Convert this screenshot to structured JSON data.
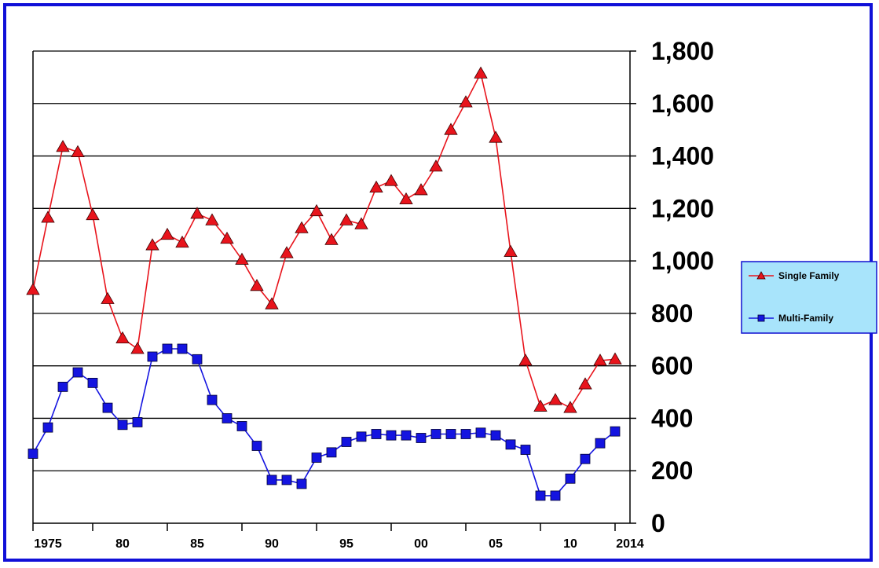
{
  "chart_data": {
    "type": "line",
    "title": "",
    "xlabel": "",
    "ylabel": "",
    "x": [
      1974,
      1975,
      1976,
      1977,
      1978,
      1979,
      1980,
      1981,
      1982,
      1983,
      1984,
      1985,
      1986,
      1987,
      1988,
      1989,
      1990,
      1991,
      1992,
      1993,
      1994,
      1995,
      1996,
      1997,
      1998,
      1999,
      2000,
      2001,
      2002,
      2003,
      2004,
      2005,
      2006,
      2007,
      2008,
      2009,
      2010,
      2011,
      2012,
      2013,
      2014
    ],
    "xlim": [
      1974,
      2014
    ],
    "ylim": [
      0,
      1800
    ],
    "y_axis_side": "right",
    "y_ticks": [
      {
        "value": 0,
        "label": "0"
      },
      {
        "value": 200,
        "label": "200"
      },
      {
        "value": 400,
        "label": "400"
      },
      {
        "value": 600,
        "label": "600"
      },
      {
        "value": 800,
        "label": "800"
      },
      {
        "value": 1000,
        "label": "1,000"
      },
      {
        "value": 1200,
        "label": "1,200"
      },
      {
        "value": 1400,
        "label": "1,400"
      },
      {
        "value": 1600,
        "label": "1,600"
      },
      {
        "value": 1800,
        "label": "1,800"
      }
    ],
    "x_ticks": [
      {
        "value": 1975,
        "label": "1975"
      },
      {
        "value": 1980,
        "label": "80"
      },
      {
        "value": 1985,
        "label": "85"
      },
      {
        "value": 1990,
        "label": "90"
      },
      {
        "value": 1995,
        "label": "95"
      },
      {
        "value": 2000,
        "label": "00"
      },
      {
        "value": 2005,
        "label": "05"
      },
      {
        "value": 2010,
        "label": "10"
      },
      {
        "value": 2014,
        "label": "2014"
      }
    ],
    "x_minor_ticks": [
      1974,
      1978,
      1983,
      1988,
      1993,
      1998,
      2003,
      2008,
      2013
    ],
    "grid": "horizontal",
    "legend_position": "right",
    "series": [
      {
        "name": "Single Family",
        "color": "#e8141c",
        "marker": "triangle",
        "values": [
          890,
          1165,
          1435,
          1415,
          1175,
          855,
          705,
          665,
          1060,
          1100,
          1070,
          1180,
          1155,
          1085,
          1005,
          905,
          835,
          1030,
          1125,
          1190,
          1080,
          1155,
          1140,
          1280,
          1305,
          1235,
          1270,
          1360,
          1500,
          1605,
          1715,
          1470,
          1035,
          620,
          445,
          470,
          440,
          530,
          620,
          625,
          null
        ]
      },
      {
        "name": "Multi-Family",
        "color": "#1414e0",
        "marker": "square",
        "values": [
          265,
          365,
          520,
          575,
          535,
          440,
          375,
          385,
          635,
          665,
          665,
          625,
          470,
          400,
          370,
          295,
          165,
          165,
          150,
          250,
          270,
          310,
          330,
          340,
          335,
          335,
          325,
          340,
          340,
          340,
          345,
          335,
          300,
          280,
          105,
          105,
          170,
          245,
          305,
          350,
          null
        ]
      }
    ]
  }
}
